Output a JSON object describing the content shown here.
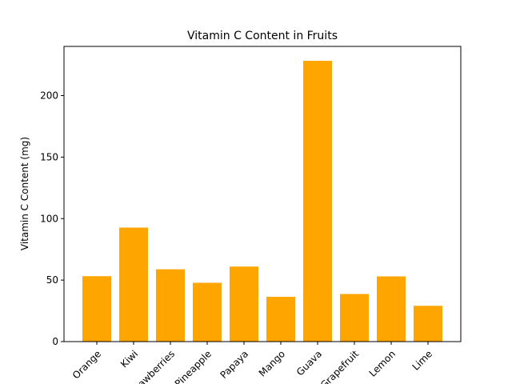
{
  "chart_data": {
    "type": "bar",
    "title": "Vitamin C Content in Fruits",
    "xlabel": "",
    "ylabel": "Vitamin C Content (mg)",
    "categories": [
      "Orange",
      "Kiwi",
      "Strawberries",
      "Pineapple",
      "Papaya",
      "Mango",
      "Guava",
      "Grapefruit",
      "Lemon",
      "Lime"
    ],
    "values": [
      53.2,
      92.7,
      58.8,
      47.8,
      61.0,
      36.4,
      228.3,
      38.7,
      53.0,
      29.1
    ],
    "ylim": [
      0,
      240
    ],
    "yticks": [
      0,
      50,
      100,
      150,
      200
    ],
    "bar_color": "#ffa500",
    "grid": false,
    "legend": "none"
  }
}
